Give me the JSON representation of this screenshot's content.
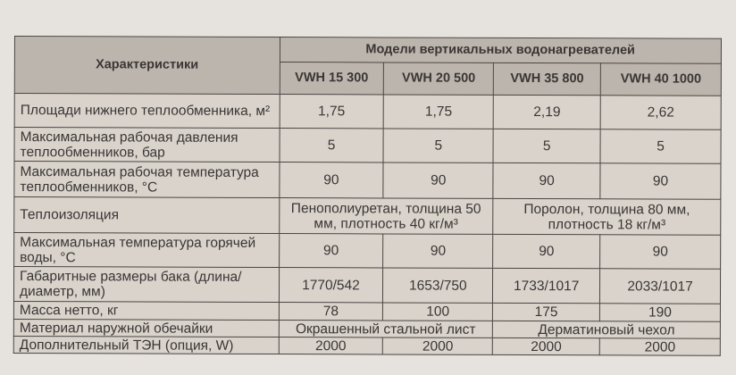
{
  "table": {
    "header_characteristics": "Характеристики",
    "header_models_group": "Модели вертикальных водонагревателей",
    "models": [
      "VWH 15 300",
      "VWH 20 500",
      "VWH 35 800",
      "VWH 40 1000"
    ],
    "rows": [
      {
        "label": "Площади нижнего теплообменника, м²",
        "values": [
          "1,75",
          "1,75",
          "2,19",
          "2,62"
        ]
      },
      {
        "label": "Максимальная рабочая давления теплообменников, бар",
        "values": [
          "5",
          "5",
          "5",
          "5"
        ]
      },
      {
        "label": "Максимальная рабочая температура теплообменников, °C",
        "values": [
          "90",
          "90",
          "90",
          "90"
        ]
      },
      {
        "label": "Теплоизоляция",
        "merged": [
          "Пенополиуретан, толщина 50 мм, плотность 40 кг/м³",
          "Поролон, толщина 80 мм, плотность 18 кг/м³"
        ]
      },
      {
        "label": "Максимальная температура горячей воды, °C",
        "values": [
          "90",
          "90",
          "90",
          "90"
        ]
      },
      {
        "label": "Габаритные размеры бака (длина/диаметр, мм)",
        "values": [
          "1770/542",
          "1653/750",
          "1733/1017",
          "2033/1017"
        ]
      },
      {
        "label": "Масса нетто, кг",
        "values": [
          "78",
          "100",
          "175",
          "190"
        ]
      },
      {
        "label": "Материал наружной обечайки",
        "merged": [
          "Окрашенный стальной лист",
          "Дерматиновый чехол"
        ]
      },
      {
        "label": "Дополнительный ТЭН (опция, W)",
        "values": [
          "2000",
          "2000",
          "2000",
          "2000"
        ]
      }
    ]
  }
}
